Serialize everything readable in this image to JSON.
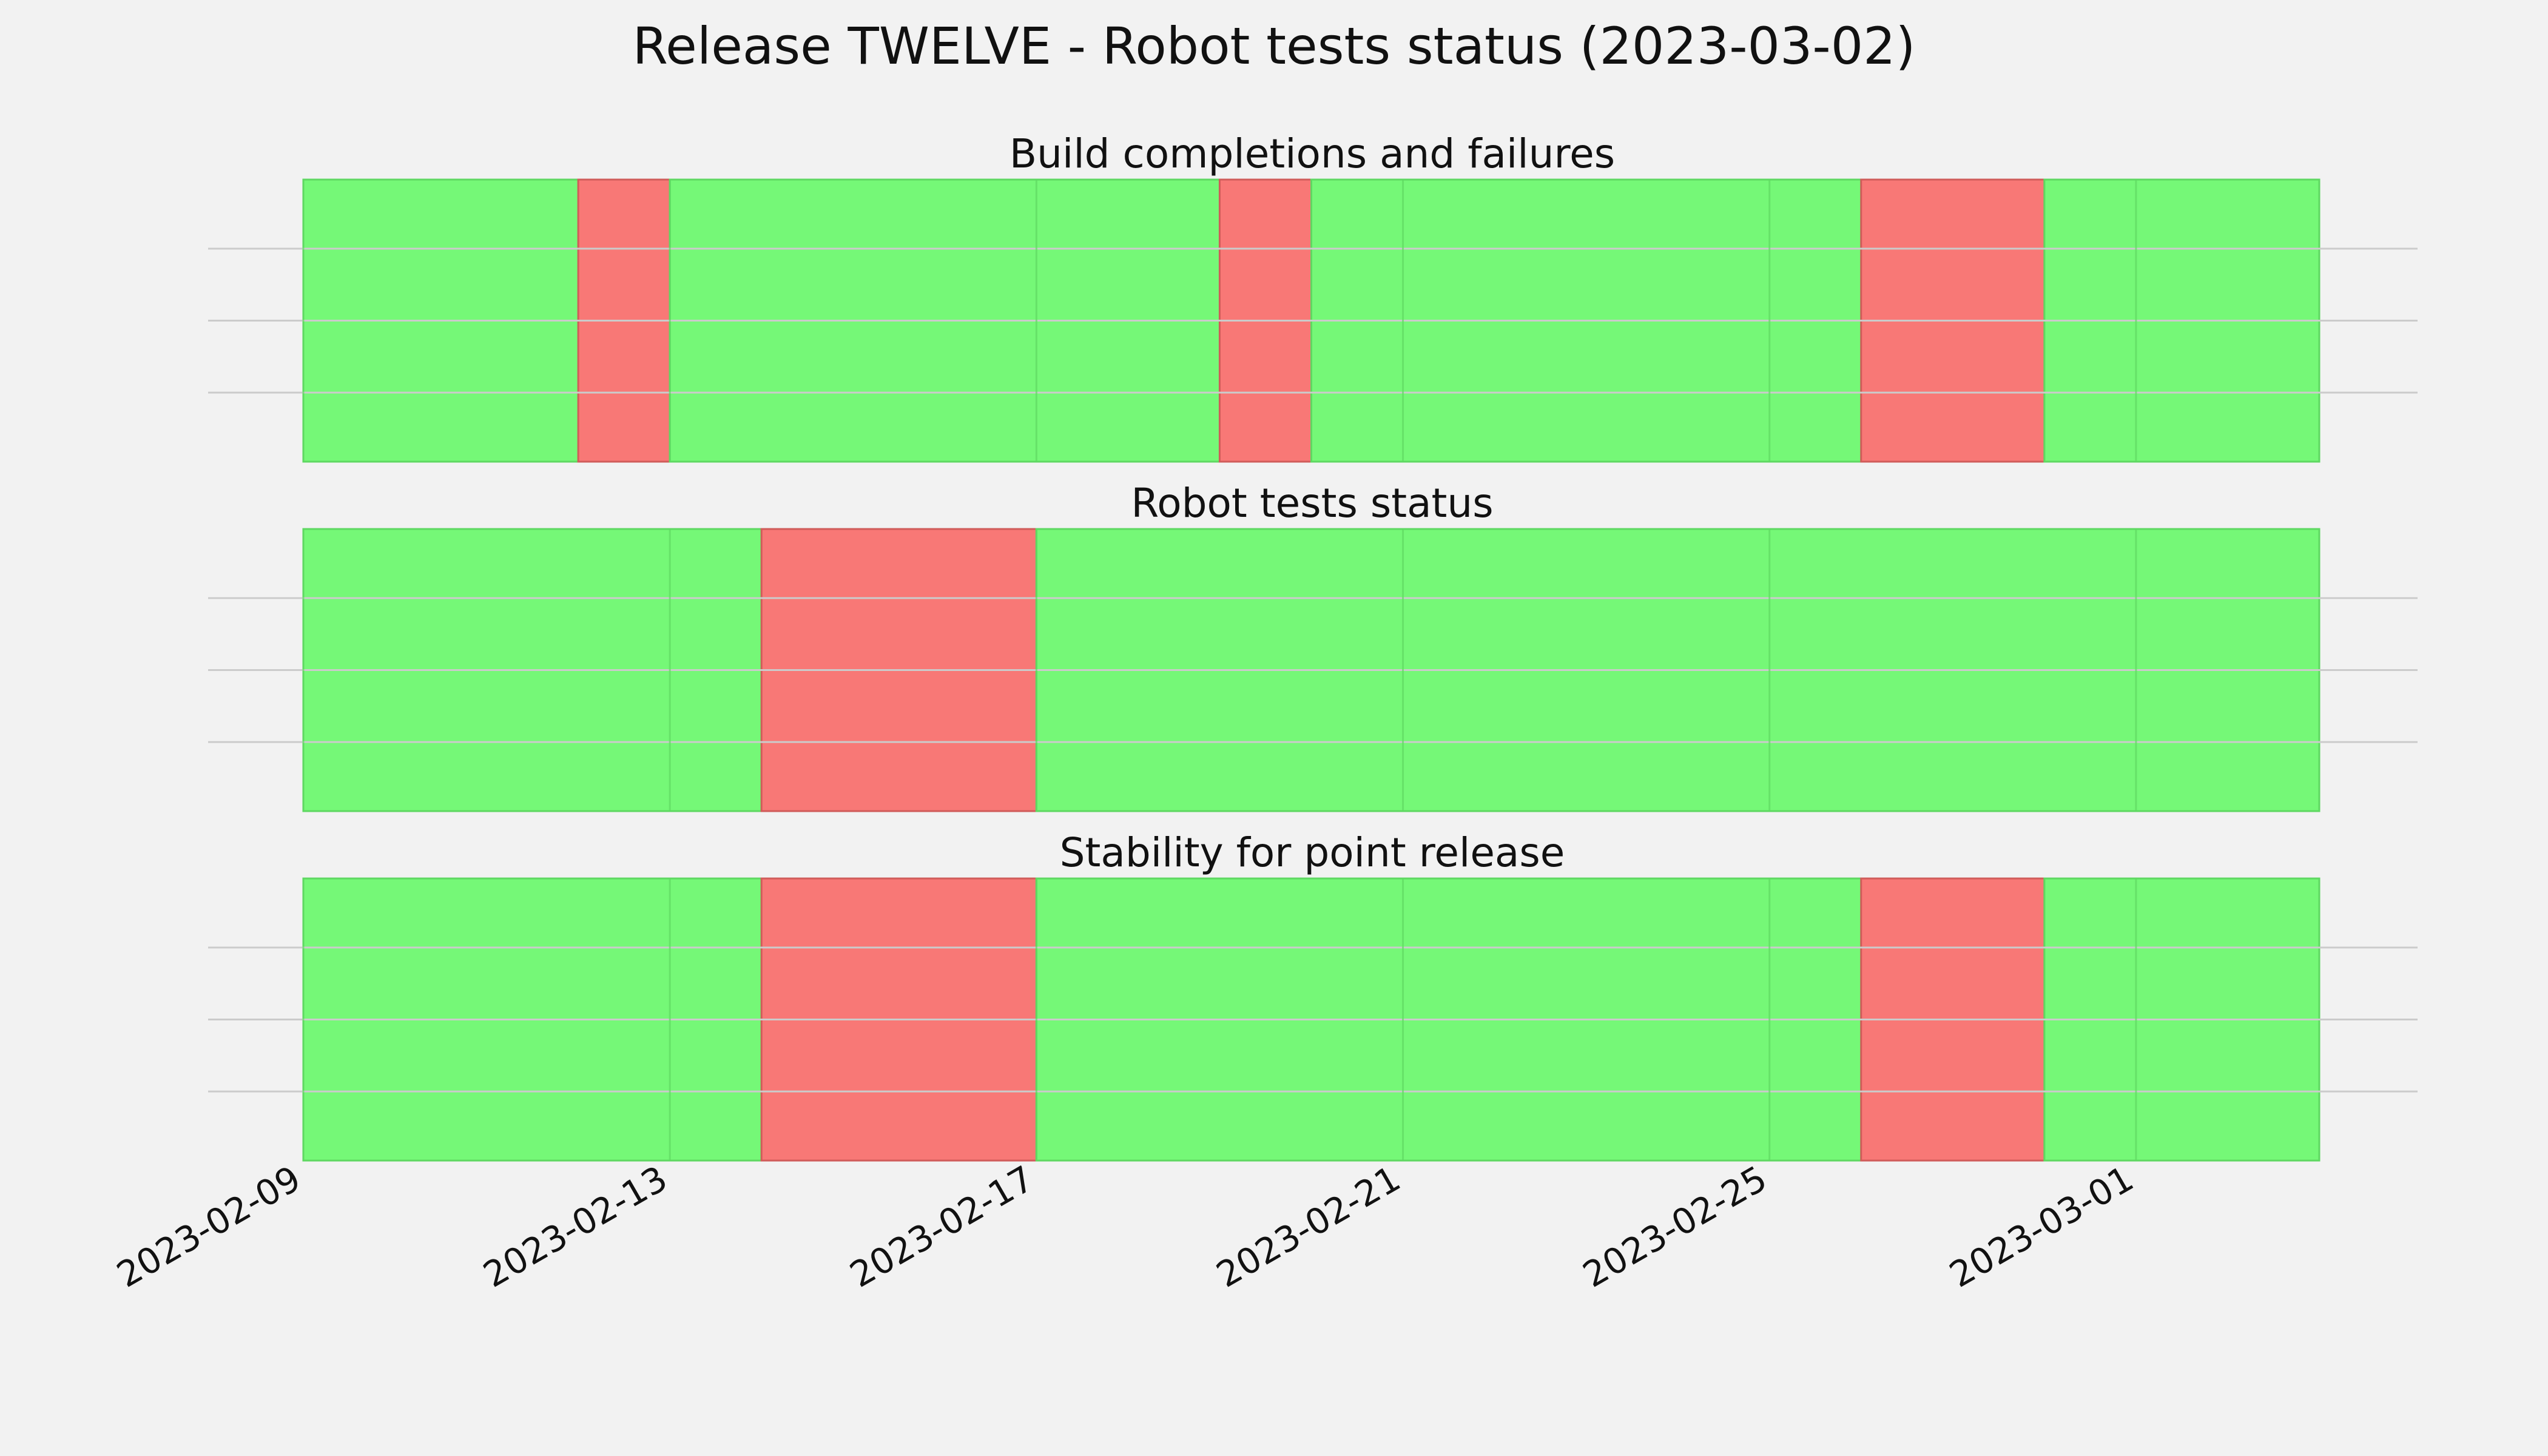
{
  "figure": {
    "title": "Release TWELVE - Robot tests status (2023-03-02)"
  },
  "colors": {
    "background": "#f2f2f2",
    "pass": "#75f877",
    "fail": "#f87876",
    "pass_edge": "#5fd862",
    "fail_edge": "#d05c5a",
    "grid": "#cbcbcb"
  },
  "chart_data": {
    "type": "bar",
    "subtype": "status-timeline",
    "x_axis": {
      "type": "date",
      "range": [
        "2023-02-09",
        "2023-03-03"
      ],
      "ticks": [
        "2023-02-09",
        "2023-02-13",
        "2023-02-17",
        "2023-02-21",
        "2023-02-25",
        "2023-03-01"
      ]
    },
    "grid": true,
    "status_values": {
      "pass": 1,
      "fail": 0
    },
    "panels": [
      {
        "title": "Build completions and failures",
        "segments": [
          {
            "start": "2023-02-09",
            "end": "2023-02-12",
            "status": "pass"
          },
          {
            "start": "2023-02-12",
            "end": "2023-02-13",
            "status": "fail"
          },
          {
            "start": "2023-02-13",
            "end": "2023-02-19",
            "status": "pass"
          },
          {
            "start": "2023-02-19",
            "end": "2023-02-20",
            "status": "fail"
          },
          {
            "start": "2023-02-20",
            "end": "2023-02-26",
            "status": "pass"
          },
          {
            "start": "2023-02-26",
            "end": "2023-02-28",
            "status": "fail"
          },
          {
            "start": "2023-02-28",
            "end": "2023-03-03",
            "status": "pass"
          }
        ]
      },
      {
        "title": "Robot tests status",
        "segments": [
          {
            "start": "2023-02-09",
            "end": "2023-02-14",
            "status": "pass"
          },
          {
            "start": "2023-02-14",
            "end": "2023-02-17",
            "status": "fail"
          },
          {
            "start": "2023-02-17",
            "end": "2023-03-03",
            "status": "pass"
          }
        ]
      },
      {
        "title": "Stability for point release",
        "segments": [
          {
            "start": "2023-02-09",
            "end": "2023-02-14",
            "status": "pass"
          },
          {
            "start": "2023-02-14",
            "end": "2023-02-17",
            "status": "fail"
          },
          {
            "start": "2023-02-17",
            "end": "2023-02-26",
            "status": "pass"
          },
          {
            "start": "2023-02-26",
            "end": "2023-02-28",
            "status": "fail"
          },
          {
            "start": "2023-02-28",
            "end": "2023-03-03",
            "status": "pass"
          }
        ]
      }
    ]
  }
}
